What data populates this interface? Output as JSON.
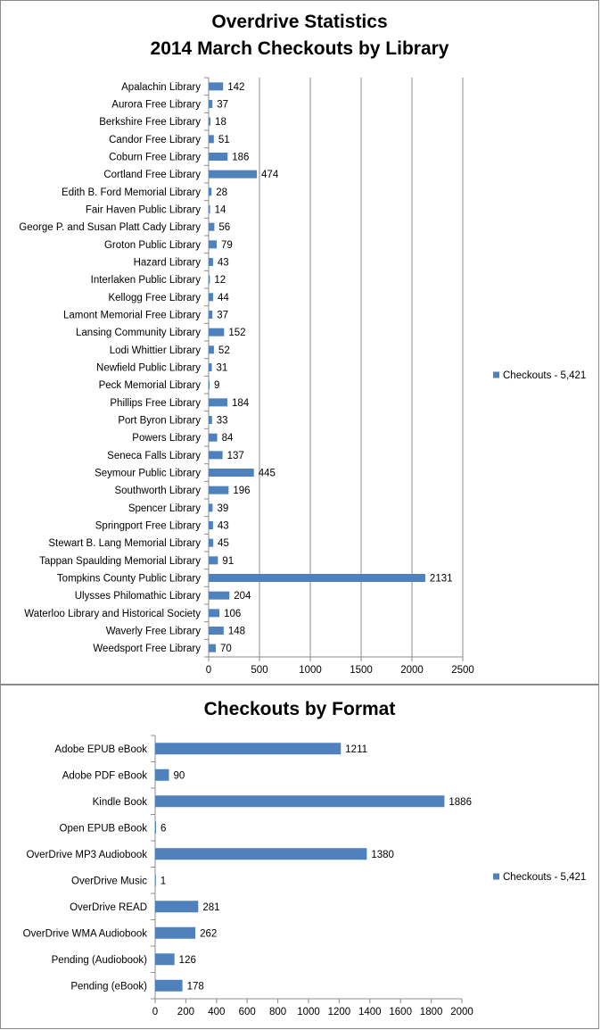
{
  "colors": {
    "bar": "#4f81bd",
    "grid": "#8c8c8c",
    "axis": "#8c8c8c",
    "text": "#000000"
  },
  "chart_data": [
    {
      "type": "bar",
      "orientation": "horizontal",
      "title": "Overdrive Statistics",
      "subtitle": "2014 March Checkouts by Library",
      "xlim": [
        0,
        2500
      ],
      "xticks": [
        "0",
        "500",
        "1000",
        "1500",
        "2000",
        "2500"
      ],
      "grid": true,
      "legend_position": "right",
      "series": [
        {
          "name": "Checkouts - 5,421",
          "categories": [
            "Apalachin Library",
            "Aurora Free Library",
            "Berkshire Free Library",
            "Candor Free Library",
            "Coburn Free Library",
            "Cortland Free Library",
            "Edith B. Ford Memorial Library",
            "Fair Haven Public Library",
            "George P. and Susan Platt Cady Library",
            "Groton Public Library",
            "Hazard Library",
            "Interlaken Public Library",
            "Kellogg Free Library",
            "Lamont Memorial Free Library",
            "Lansing Community Library",
            "Lodi Whittier Library",
            "Newfield Public Library",
            "Peck Memorial Library",
            "Phillips Free Library",
            "Port Byron Library",
            "Powers Library",
            "Seneca Falls Library",
            "Seymour Public Library",
            "Southworth Library",
            "Spencer Library",
            "Springport Free Library",
            "Stewart B. Lang Memorial Library",
            "Tappan Spaulding Memorial Library",
            "Tompkins County Public Library",
            "Ulysses Philomathic Library",
            "Waterloo Library and Historical Society",
            "Waverly Free Library",
            "Weedsport Free Library"
          ],
          "values": [
            142,
            37,
            18,
            51,
            186,
            474,
            28,
            14,
            56,
            79,
            43,
            12,
            44,
            37,
            152,
            52,
            31,
            9,
            184,
            33,
            84,
            137,
            445,
            196,
            39,
            43,
            45,
            91,
            2131,
            204,
            106,
            148,
            70
          ]
        }
      ]
    },
    {
      "type": "bar",
      "orientation": "horizontal",
      "title": "Checkouts by Format",
      "xlim": [
        0,
        2000
      ],
      "xticks": [
        "0",
        "200",
        "400",
        "600",
        "800",
        "1000",
        "1200",
        "1400",
        "1600",
        "1800",
        "2000"
      ],
      "grid": false,
      "legend_position": "right",
      "series": [
        {
          "name": "Checkouts - 5,421",
          "categories": [
            "Adobe EPUB eBook",
            "Adobe PDF eBook",
            "Kindle Book",
            "Open EPUB eBook",
            "OverDrive MP3 Audiobook",
            "OverDrive Music",
            "OverDrive READ",
            "OverDrive WMA Audiobook",
            "Pending (Audiobook)",
            "Pending (eBook)"
          ],
          "values": [
            1211,
            90,
            1886,
            6,
            1380,
            1,
            281,
            262,
            126,
            178
          ]
        }
      ]
    }
  ]
}
